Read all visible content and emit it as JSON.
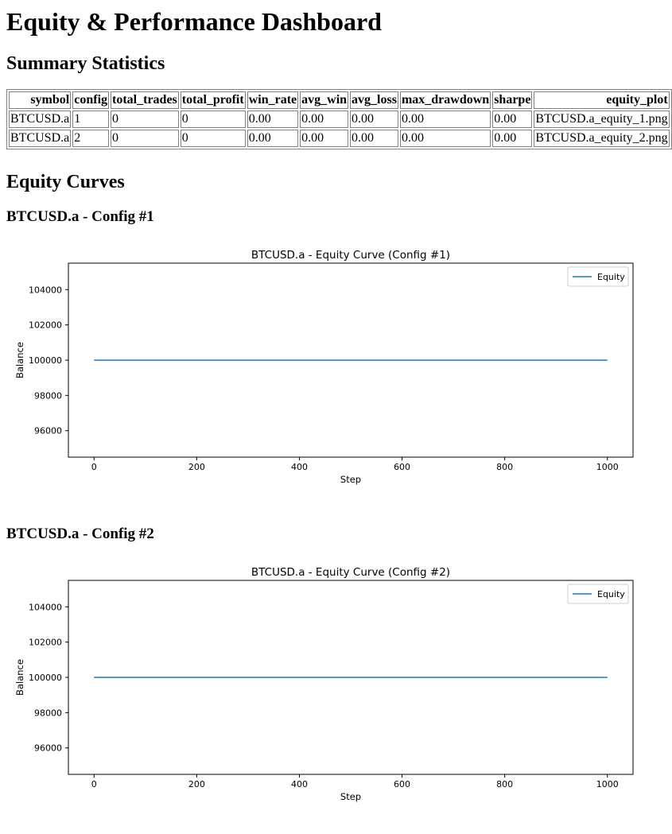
{
  "page": {
    "title": "Equity & Performance Dashboard",
    "summary_heading": "Summary Statistics",
    "curves_heading": "Equity Curves"
  },
  "table": {
    "columns": [
      "symbol",
      "config",
      "total_trades",
      "total_profit",
      "win_rate",
      "avg_win",
      "avg_loss",
      "max_drawdown",
      "sharpe",
      "equity_plot"
    ],
    "rows": [
      [
        "BTCUSD.a",
        "1",
        "0",
        "0",
        "0.00",
        "0.00",
        "0.00",
        "0.00",
        "0.00",
        "BTCUSD.a_equity_1.png"
      ],
      [
        "BTCUSD.a",
        "2",
        "0",
        "0",
        "0.00",
        "0.00",
        "0.00",
        "0.00",
        "0.00",
        "BTCUSD.a_equity_2.png"
      ]
    ]
  },
  "sections": [
    {
      "heading": "BTCUSD.a - Config #1"
    },
    {
      "heading": "BTCUSD.a - Config #2"
    }
  ],
  "chart_data": [
    {
      "type": "line",
      "title": "BTCUSD.a - Equity Curve (Config #1)",
      "xlabel": "Step",
      "ylabel": "Balance",
      "xlim": [
        -50,
        1050
      ],
      "ylim": [
        94500,
        105500
      ],
      "xticks": [
        0,
        200,
        400,
        600,
        800,
        1000
      ],
      "yticks": [
        96000,
        98000,
        100000,
        102000,
        104000
      ],
      "legend": "top-right",
      "grid": false,
      "series": [
        {
          "name": "Equity",
          "color": "#1f77b4",
          "x": [
            0,
            1000
          ],
          "y": [
            100000,
            100000
          ]
        }
      ]
    },
    {
      "type": "line",
      "title": "BTCUSD.a - Equity Curve (Config #2)",
      "xlabel": "Step",
      "ylabel": "Balance",
      "xlim": [
        -50,
        1050
      ],
      "ylim": [
        94500,
        105500
      ],
      "xticks": [
        0,
        200,
        400,
        600,
        800,
        1000
      ],
      "yticks": [
        96000,
        98000,
        100000,
        102000,
        104000
      ],
      "legend": "top-right",
      "grid": false,
      "series": [
        {
          "name": "Equity",
          "color": "#1f77b4",
          "x": [
            0,
            1000
          ],
          "y": [
            100000,
            100000
          ]
        }
      ]
    }
  ]
}
